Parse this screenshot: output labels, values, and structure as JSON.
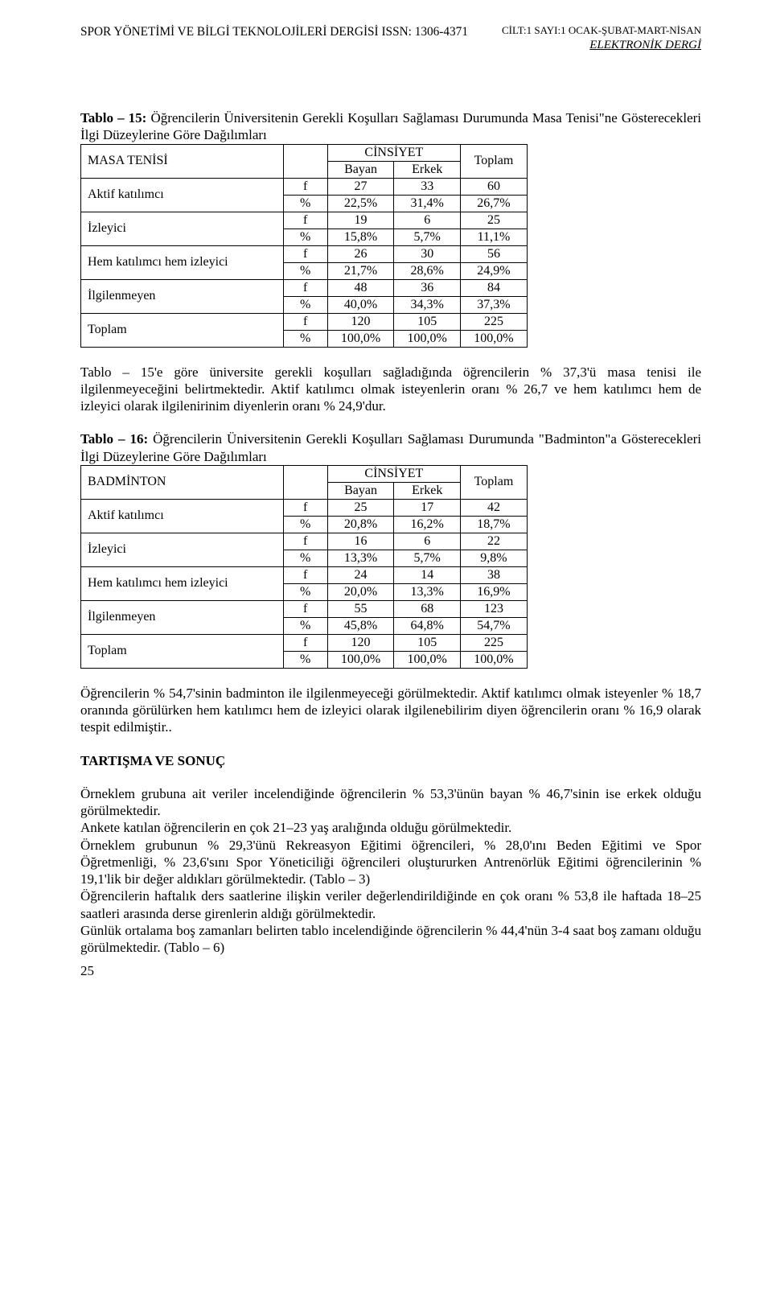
{
  "header": {
    "journal_left": "SPOR YÖNETİMİ VE BİLGİ TEKNOLOJİLERİ DERGİSİ ISSN: 1306-4371",
    "issue_line": "CİLT:1 SAYI:1 OCAK-ŞUBAT-MART-NİSAN",
    "sub": "ELEKTRONİK DERGİ"
  },
  "t15": {
    "title": "Tablo – 15: Öğrencilerin Üniversitenin Gerekli Koşulları Sağlaması Durumunda Masa Tenisi\"ne Gösterecekleri İlgi Düzeylerine Göre Dağılımları",
    "corner_label": "MASA TENİSİ",
    "cins_label": "CİNSİYET",
    "col_bayan": "Bayan",
    "col_erkek": "Erkek",
    "col_toplam": "Toplam",
    "rows": [
      {
        "label": "Aktif katılımcı",
        "f": [
          "27",
          "33",
          "60"
        ],
        "p": [
          "22,5%",
          "31,4%",
          "26,7%"
        ]
      },
      {
        "label": "İzleyici",
        "f": [
          "19",
          "6",
          "25"
        ],
        "p": [
          "15,8%",
          "5,7%",
          "11,1%"
        ]
      },
      {
        "label": "Hem katılımcı hem izleyici",
        "f": [
          "26",
          "30",
          "56"
        ],
        "p": [
          "21,7%",
          "28,6%",
          "24,9%"
        ]
      },
      {
        "label": "İlgilenmeyen",
        "f": [
          "48",
          "36",
          "84"
        ],
        "p": [
          "40,0%",
          "34,3%",
          "37,3%"
        ]
      },
      {
        "label": "Toplam",
        "f": [
          "120",
          "105",
          "225"
        ],
        "p": [
          "100,0%",
          "100,0%",
          "100,0%"
        ]
      }
    ],
    "f_label": "f",
    "p_label": "%"
  },
  "p15": "Tablo – 15'e göre üniversite gerekli koşulları sağladığında öğrencilerin % 37,3'ü masa tenisi ile ilgilenmeyeceğini belirtmektedir. Aktif katılımcı olmak isteyenlerin oranı % 26,7 ve hem katılımcı hem de izleyici olarak ilgilenirinim diyenlerin oranı % 24,9'dur.",
  "t16": {
    "title": "Tablo – 16: Öğrencilerin Üniversitenin Gerekli Koşulları Sağlaması Durumunda \"Badminton\"a Gösterecekleri İlgi Düzeylerine Göre Dağılımları",
    "corner_label": "BADMİNTON",
    "cins_label": "CİNSİYET",
    "col_bayan": "Bayan",
    "col_erkek": "Erkek",
    "col_toplam": "Toplam",
    "rows": [
      {
        "label": "Aktif katılımcı",
        "f": [
          "25",
          "17",
          "42"
        ],
        "p": [
          "20,8%",
          "16,2%",
          "18,7%"
        ]
      },
      {
        "label": "İzleyici",
        "f": [
          "16",
          "6",
          "22"
        ],
        "p": [
          "13,3%",
          "5,7%",
          "9,8%"
        ]
      },
      {
        "label": "Hem katılımcı hem izleyici",
        "f": [
          "24",
          "14",
          "38"
        ],
        "p": [
          "20,0%",
          "13,3%",
          "16,9%"
        ]
      },
      {
        "label": "İlgilenmeyen",
        "f": [
          "55",
          "68",
          "123"
        ],
        "p": [
          "45,8%",
          "64,8%",
          "54,7%"
        ]
      },
      {
        "label": "Toplam",
        "f": [
          "120",
          "105",
          "225"
        ],
        "p": [
          "100,0%",
          "100,0%",
          "100,0%"
        ]
      }
    ],
    "f_label": "f",
    "p_label": "%"
  },
  "p16": "Öğrencilerin % 54,7'sinin badminton ile ilgilenmeyeceği görülmektedir. Aktif katılımcı olmak isteyenler % 18,7 oranında görülürken hem katılımcı hem de izleyici olarak ilgilenebilirim diyen öğrencilerin oranı % 16,9 olarak tespit edilmiştir..",
  "disc_heading": "TARTIŞMA VE SONUÇ",
  "disc_p1": "Örneklem grubuna ait veriler incelendiğinde öğrencilerin % 53,3'ünün bayan % 46,7'sinin ise erkek olduğu görülmektedir.",
  "disc_p2": "Ankete katılan öğrencilerin en çok 21–23 yaş aralığında olduğu görülmektedir.",
  "disc_p3": "Örneklem grubunun % 29,3'ünü Rekreasyon Eğitimi öğrencileri, % 28,0'ını Beden Eğitimi ve Spor Öğretmenliği, % 23,6'sını Spor Yöneticiliği öğrencileri oluştururken Antrenörlük Eğitimi öğrencilerinin % 19,1'lik bir değer aldıkları görülmektedir. (Tablo – 3)",
  "disc_p4": "Öğrencilerin haftalık ders saatlerine ilişkin veriler değerlendirildiğinde en çok oranı % 53,8 ile haftada 18–25 saatleri arasında derse girenlerin aldığı görülmektedir.",
  "disc_p5": "Günlük ortalama boş zamanları belirten tablo incelendiğinde öğrencilerin % 44,4'nün 3-4 saat boş zamanı olduğu görülmektedir. (Tablo – 6)",
  "page_number": "25"
}
